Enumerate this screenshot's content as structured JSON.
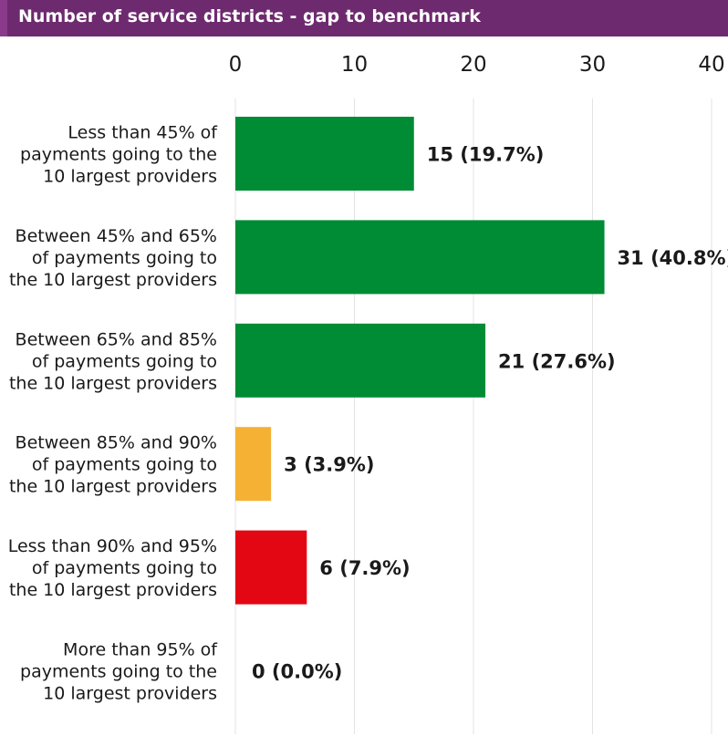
{
  "header": {
    "title": "Number of service districts - gap to benchmark"
  },
  "chart_data": {
    "type": "bar",
    "orientation": "horizontal",
    "title": "Number of service districts - gap to benchmark",
    "xlim": [
      0,
      40
    ],
    "xticks": [
      0,
      10,
      20,
      30,
      40
    ],
    "grid": true,
    "categories": [
      [
        "Less than 45% of",
        "payments going to the",
        "10 largest providers"
      ],
      [
        "Between 45% and 65%",
        "of payments going to",
        "the 10 largest providers"
      ],
      [
        "Between 65% and 85%",
        "of payments going to",
        "the 10 largest providers"
      ],
      [
        "Between 85% and 90%",
        "of payments going to",
        "the 10 largest providers"
      ],
      [
        "Less than 90% and 95%",
        "of payments going to",
        "the 10 largest providers"
      ],
      [
        "More than 95% of",
        "payments going to the",
        "10 largest providers"
      ]
    ],
    "values": [
      15,
      31,
      21,
      3,
      6,
      0
    ],
    "data_labels": [
      "15 (19.7%)",
      "31 (40.8%)",
      "21 (27.6%)",
      "3 (3.9%)",
      "6 (7.9%)",
      "0 (0.0%)"
    ],
    "colors": [
      "#008c35",
      "#008c35",
      "#008c35",
      "#f4b133",
      "#e30613",
      "#008c35"
    ]
  }
}
